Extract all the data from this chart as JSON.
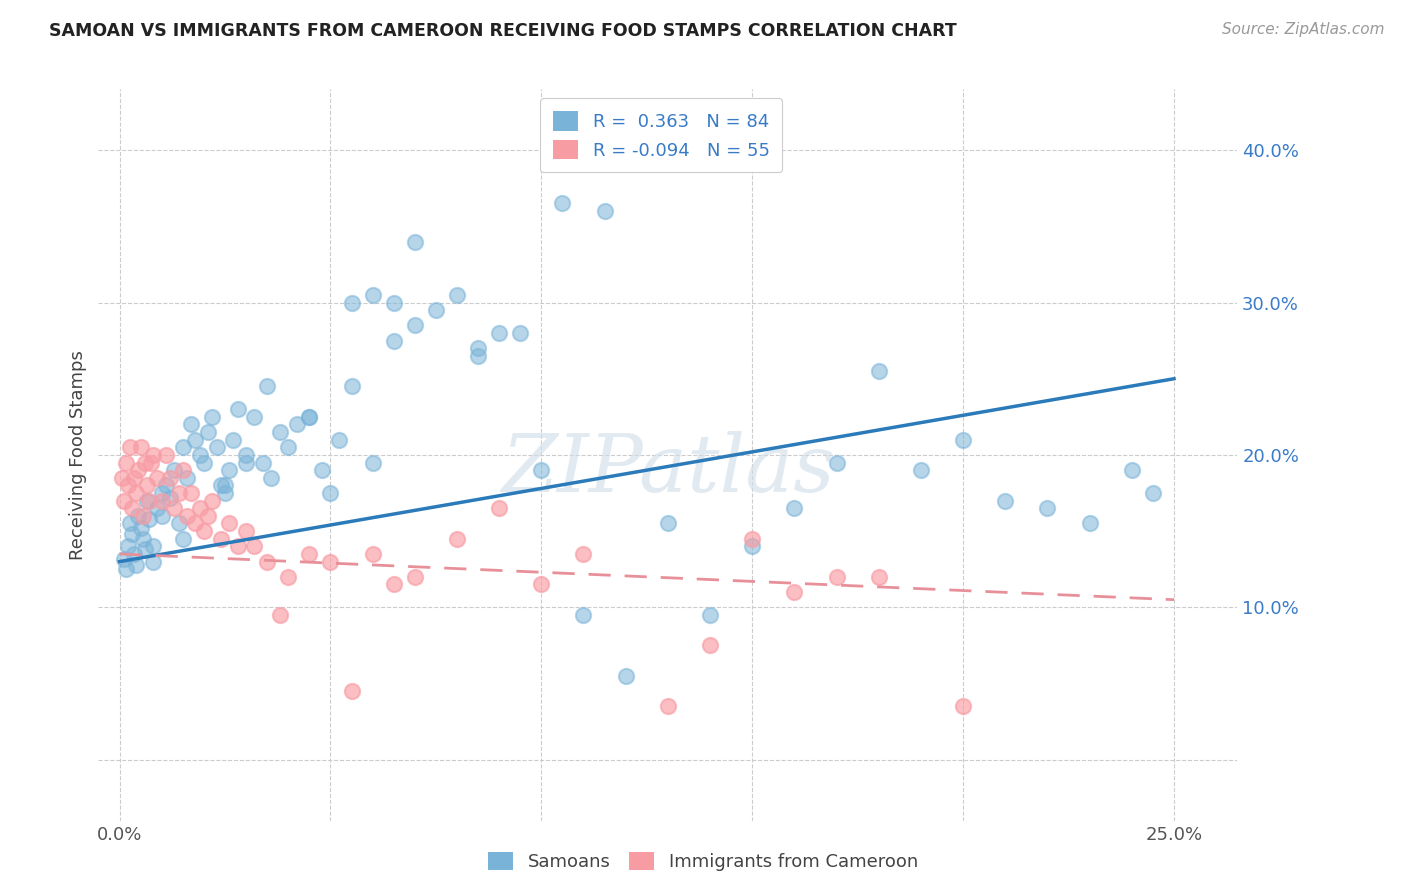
{
  "title": "SAMOAN VS IMMIGRANTS FROM CAMEROON RECEIVING FOOD STAMPS CORRELATION CHART",
  "source": "Source: ZipAtlas.com",
  "ylabel": "Receiving Food Stamps",
  "xlim": [
    -0.5,
    26.5
  ],
  "ylim": [
    -4,
    44
  ],
  "ytick_vals": [
    0,
    10,
    20,
    30,
    40
  ],
  "ytick_labels": [
    "",
    "10.0%",
    "20.0%",
    "30.0%",
    "40.0%"
  ],
  "xtick_vals": [
    0,
    5,
    10,
    15,
    20,
    25
  ],
  "xtick_labels": [
    "0.0%",
    "",
    "",
    "",
    "",
    "25.0%"
  ],
  "samoans_color": "#7ab3d8",
  "cameroon_color": "#f89ca4",
  "blue_line_color": "#2b7bba",
  "pink_line_color": "#e8909a",
  "ytick_color": "#3a7bc8",
  "xtick_color": "#555555",
  "legend_R1": "0.363",
  "legend_N1": "84",
  "legend_R2": "-0.094",
  "legend_N2": "55",
  "watermark": "ZIPatlas",
  "background_color": "#ffffff",
  "grid_color": "#cccccc",
  "blue_line_start_y": 13.0,
  "blue_line_end_y": 25.0,
  "pink_line_start_y": 13.5,
  "pink_line_end_y": 10.5,
  "sam_x": [
    0.1,
    0.15,
    0.2,
    0.25,
    0.3,
    0.35,
    0.4,
    0.45,
    0.5,
    0.55,
    0.6,
    0.65,
    0.7,
    0.8,
    0.9,
    1.0,
    1.0,
    1.1,
    1.2,
    1.3,
    1.4,
    1.5,
    1.6,
    1.7,
    1.8,
    1.9,
    2.0,
    2.1,
    2.2,
    2.3,
    2.4,
    2.5,
    2.6,
    2.7,
    2.8,
    3.0,
    3.2,
    3.4,
    3.5,
    3.6,
    3.8,
    4.0,
    4.2,
    4.5,
    4.8,
    5.0,
    5.2,
    5.5,
    6.0,
    6.5,
    7.0,
    7.5,
    8.0,
    8.5,
    9.0,
    10.0,
    11.0,
    12.0,
    13.0,
    14.0,
    15.0,
    17.0,
    18.0,
    19.0,
    20.0,
    21.0,
    22.0,
    23.0,
    24.0,
    24.5,
    10.5,
    11.5,
    6.5,
    7.0,
    8.5,
    9.5,
    16.0,
    6.0,
    5.5,
    4.5,
    3.0,
    2.5,
    1.5,
    0.8
  ],
  "sam_y": [
    13.2,
    12.5,
    14.0,
    15.5,
    14.8,
    13.5,
    12.8,
    16.0,
    15.2,
    14.5,
    13.8,
    17.0,
    15.8,
    14.0,
    16.5,
    16.0,
    17.5,
    18.0,
    17.2,
    19.0,
    15.5,
    20.5,
    18.5,
    22.0,
    21.0,
    20.0,
    19.5,
    21.5,
    22.5,
    20.5,
    18.0,
    17.5,
    19.0,
    21.0,
    23.0,
    20.0,
    22.5,
    19.5,
    24.5,
    18.5,
    21.5,
    20.5,
    22.0,
    22.5,
    19.0,
    17.5,
    21.0,
    24.5,
    19.5,
    30.0,
    28.5,
    29.5,
    30.5,
    27.0,
    28.0,
    19.0,
    9.5,
    5.5,
    15.5,
    9.5,
    14.0,
    19.5,
    25.5,
    19.0,
    21.0,
    17.0,
    16.5,
    15.5,
    19.0,
    17.5,
    36.5,
    36.0,
    27.5,
    34.0,
    26.5,
    28.0,
    16.5,
    30.5,
    30.0,
    22.5,
    19.5,
    18.0,
    14.5,
    13.0
  ],
  "cam_x": [
    0.05,
    0.1,
    0.15,
    0.2,
    0.25,
    0.3,
    0.35,
    0.4,
    0.45,
    0.5,
    0.55,
    0.6,
    0.65,
    0.7,
    0.75,
    0.8,
    0.9,
    1.0,
    1.1,
    1.2,
    1.3,
    1.4,
    1.5,
    1.6,
    1.7,
    1.8,
    1.9,
    2.0,
    2.1,
    2.2,
    2.4,
    2.6,
    2.8,
    3.0,
    3.2,
    3.5,
    3.8,
    4.0,
    4.5,
    5.0,
    5.5,
    6.0,
    6.5,
    7.0,
    8.0,
    9.0,
    10.0,
    11.0,
    13.0,
    14.0,
    15.0,
    16.0,
    17.0,
    18.0,
    20.0
  ],
  "cam_y": [
    18.5,
    17.0,
    19.5,
    18.0,
    20.5,
    16.5,
    18.5,
    17.5,
    19.0,
    20.5,
    16.0,
    19.5,
    18.0,
    17.0,
    19.5,
    20.0,
    18.5,
    17.0,
    20.0,
    18.5,
    16.5,
    17.5,
    19.0,
    16.0,
    17.5,
    15.5,
    16.5,
    15.0,
    16.0,
    17.0,
    14.5,
    15.5,
    14.0,
    15.0,
    14.0,
    13.0,
    9.5,
    12.0,
    13.5,
    13.0,
    4.5,
    13.5,
    11.5,
    12.0,
    14.5,
    16.5,
    11.5,
    13.5,
    3.5,
    7.5,
    14.5,
    11.0,
    12.0,
    12.0,
    3.5
  ]
}
